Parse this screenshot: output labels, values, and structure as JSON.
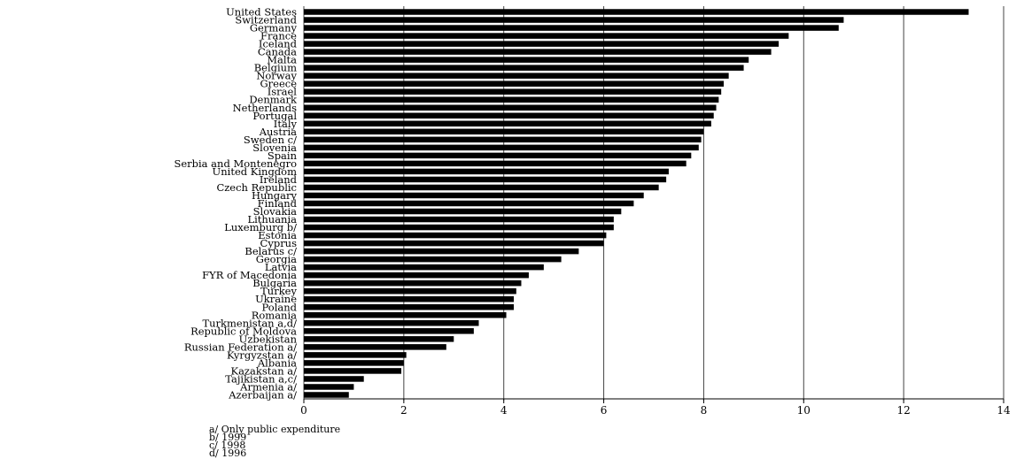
{
  "chart_data": {
    "type": "bar",
    "orientation": "horizontal",
    "title": "",
    "xlabel": "",
    "ylabel": "",
    "xlim": [
      0,
      14
    ],
    "x_ticks": [
      "0",
      "2",
      "4",
      "6",
      "8",
      "10",
      "12",
      "14"
    ],
    "grid": "vertical",
    "bar_color": "#000000",
    "categories": [
      "United States",
      "Switzerland",
      "Germany",
      "France",
      "Iceland",
      "Canada",
      "Malta",
      "Belgium",
      "Norway",
      "Greece",
      "Israel",
      "Denmark",
      "Netherlands",
      "Portugal",
      "Italy",
      "Austria",
      "Sweden c/",
      "Slovenia",
      "Spain",
      "Serbia and Montenegro",
      "United Kingdom",
      "Ireland",
      "Czech Republic",
      "Hungary",
      "Finland",
      "Slovakia",
      "Lithuania",
      "Luxemburg b/",
      "Estonia",
      "Cyprus",
      "Belarus c/",
      "Georgia",
      "Latvia",
      "FYR of Macedonia",
      "Bulgaria",
      "Turkey",
      "Ukraine",
      "Poland",
      "Romania",
      "Turkmenistan a,d/",
      "Republic of Moldova",
      "Uzbekistan",
      "Russian Federation a/",
      "Kyrgyzstan a/",
      "Albania",
      "Kazakstan a/",
      "Tajikistan a,c/",
      "Armenia a/",
      "Azerbaijan a/"
    ],
    "values": [
      13.3,
      10.8,
      10.7,
      9.7,
      9.5,
      9.35,
      8.9,
      8.8,
      8.5,
      8.4,
      8.35,
      8.3,
      8.25,
      8.2,
      8.15,
      8.0,
      7.95,
      7.9,
      7.75,
      7.65,
      7.3,
      7.25,
      7.1,
      6.8,
      6.6,
      6.35,
      6.2,
      6.2,
      6.05,
      6.0,
      5.5,
      5.15,
      4.8,
      4.5,
      4.35,
      4.25,
      4.2,
      4.2,
      4.05,
      3.5,
      3.4,
      3.0,
      2.85,
      2.05,
      2.0,
      1.95,
      1.2,
      1.0,
      0.9
    ],
    "footnotes": [
      "a/ Only public expenditure",
      "b/ 1999",
      "c/ 1998",
      "d/ 1996"
    ]
  }
}
